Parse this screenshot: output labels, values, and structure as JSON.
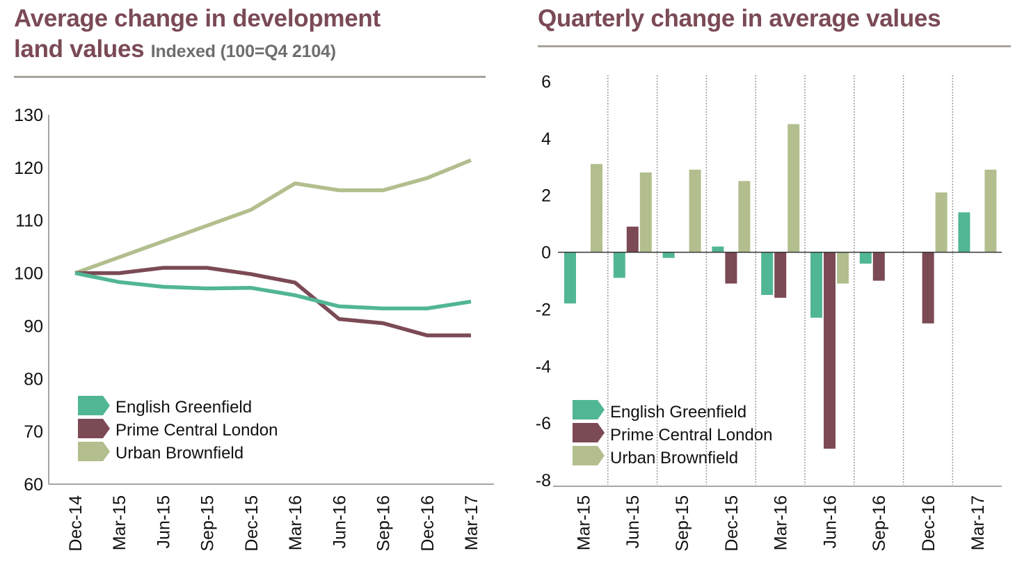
{
  "colors": {
    "title": "#7a4a55",
    "english_greenfield": "#51b694",
    "prime_central_london": "#7b4a55",
    "urban_brownfield": "#b2be8d",
    "axis": "#a5a5a5",
    "gridline": "#9a9a9a",
    "zero_line": "#333333"
  },
  "left": {
    "title_line1": "Average change in development",
    "title_line2": "land values",
    "subtitle": "Indexed (100=Q4 2104)"
  },
  "right": {
    "title": "Quarterly change in average values"
  },
  "chart_data": [
    {
      "type": "line",
      "title": "Average change in development land values",
      "subtitle": "Indexed (100=Q4 2104)",
      "xlabel": "",
      "ylabel": "",
      "x": [
        "Dec-14",
        "Mar-15",
        "Jun-15",
        "Sep-15",
        "Dec-15",
        "Mar-16",
        "Jun-16",
        "Sep-16",
        "Dec-16",
        "Mar-17"
      ],
      "ylim": [
        60,
        130
      ],
      "yticks": [
        60,
        70,
        80,
        90,
        100,
        110,
        120,
        130
      ],
      "grid": false,
      "legend_position": "bottom-left",
      "series": [
        {
          "name": "English Greenfield",
          "color": "#51b694",
          "values": [
            100,
            98.3,
            97.4,
            97.1,
            97.2,
            95.8,
            93.7,
            93.3,
            93.3,
            94.6
          ]
        },
        {
          "name": "Prime Central London",
          "color": "#7b4a55",
          "values": [
            100,
            100,
            101,
            101,
            99.8,
            98.2,
            91.3,
            90.5,
            88.2,
            88.2
          ]
        },
        {
          "name": "Urban Brownfield",
          "color": "#b2be8d",
          "values": [
            100,
            103,
            106,
            109,
            112,
            117,
            115.7,
            115.7,
            118,
            121.4
          ]
        }
      ]
    },
    {
      "type": "bar",
      "title": "Quarterly change in average values",
      "xlabel": "",
      "ylabel": "",
      "categories": [
        "Mar-15",
        "Jun-15",
        "Sep-15",
        "Dec-15",
        "Mar-16",
        "Jun-16",
        "Sep-16",
        "Dec-16",
        "Mar-17"
      ],
      "ylim": [
        -8,
        6
      ],
      "yticks": [
        -8,
        -6,
        -4,
        -2,
        0,
        2,
        4,
        6
      ],
      "grid": false,
      "category_dividers": "dotted",
      "legend_position": "bottom-left",
      "series": [
        {
          "name": "English Greenfield",
          "color": "#51b694",
          "values": [
            -1.8,
            -0.9,
            -0.2,
            0.2,
            -1.5,
            -2.3,
            -0.4,
            0,
            1.4
          ]
        },
        {
          "name": "Prime Central London",
          "color": "#7b4a55",
          "values": [
            0,
            0.9,
            0,
            -1.1,
            -1.6,
            -6.9,
            -1.0,
            -2.5,
            0
          ]
        },
        {
          "name": "Urban Brownfield",
          "color": "#b2be8d",
          "values": [
            3.1,
            2.8,
            2.9,
            2.5,
            4.5,
            -1.1,
            0,
            2.1,
            2.9
          ]
        }
      ]
    }
  ]
}
